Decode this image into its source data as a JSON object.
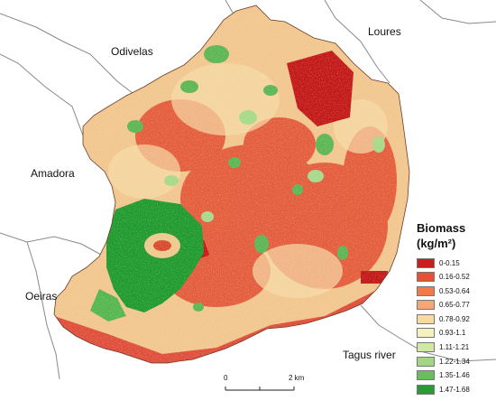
{
  "places": {
    "odivelas": "Odivelas",
    "loures": "Loures",
    "amadora": "Amadora",
    "oeiras": "Oeiras",
    "tagus": "Tagus river"
  },
  "legend": {
    "title_line1": "Biomass",
    "title_line2": "(kg/m²)",
    "classes": [
      {
        "label": "0-0.15",
        "color": "#c81e1e"
      },
      {
        "label": "0.16-0.52",
        "color": "#e8502f"
      },
      {
        "label": "0.53-0.64",
        "color": "#f07a4a"
      },
      {
        "label": "0.65-0.77",
        "color": "#f5a673"
      },
      {
        "label": "0.78-0.92",
        "color": "#f8d9a2"
      },
      {
        "label": "0.93-1.1",
        "color": "#f4f0c0"
      },
      {
        "label": "1.11-1.21",
        "color": "#cfe9a4"
      },
      {
        "label": "1.22-1.34",
        "color": "#a2d685"
      },
      {
        "label": "1.35-1.46",
        "color": "#69be5c"
      },
      {
        "label": "1.47-1.68",
        "color": "#2b9a33"
      }
    ]
  },
  "scale_bar": {
    "start_label": "0",
    "end_label": "2 km"
  }
}
